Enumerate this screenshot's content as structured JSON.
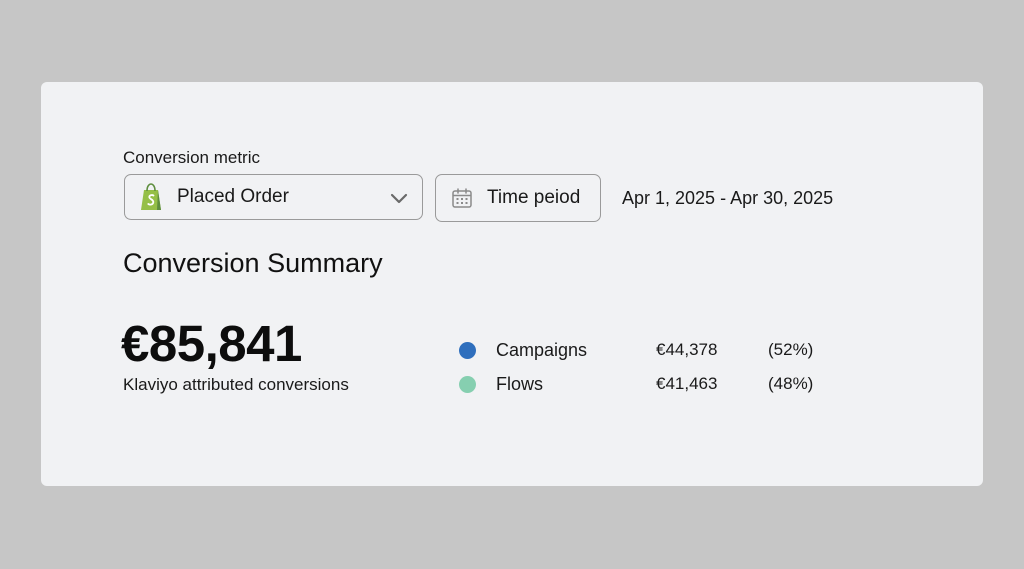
{
  "filters": {
    "metric_label": "Conversion metric",
    "metric_value": "Placed Order",
    "metric_icon": "shopify-bag-icon",
    "time_period_label": "Time peiod",
    "date_range": "Apr 1, 2025 - Apr 30, 2025"
  },
  "summary": {
    "title": "Conversion Summary",
    "total": "€85,841",
    "total_caption": "Klaviyo attributed conversions",
    "breakdown": [
      {
        "label": "Campaigns",
        "amount": "€44,378",
        "percent": "(52%)",
        "color": "#2f6fbd"
      },
      {
        "label": "Flows",
        "amount": "€41,463",
        "percent": "(48%)",
        "color": "#86cfb0"
      }
    ]
  },
  "colors": {
    "page_background": "#c6c6c6",
    "card_background": "#f1f2f4",
    "shopify_green": "#95bf47"
  }
}
